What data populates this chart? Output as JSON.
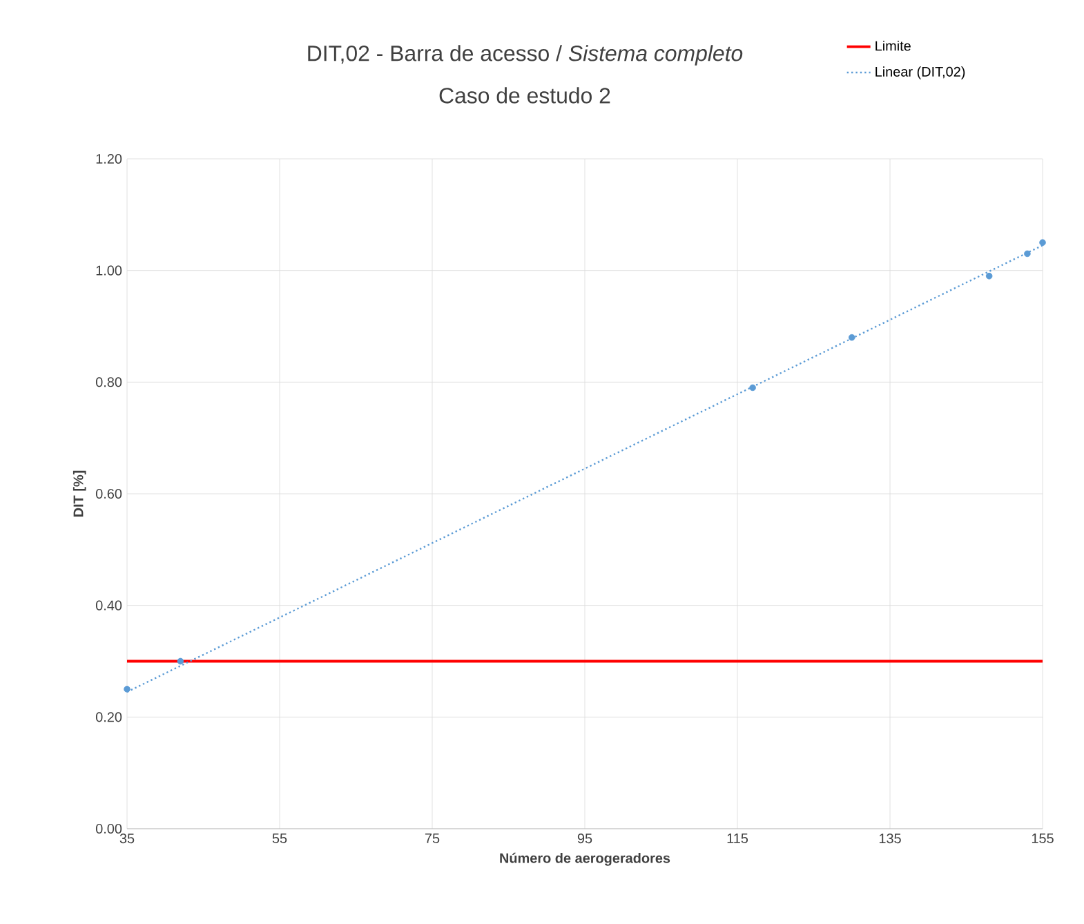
{
  "chart_data": {
    "type": "scatter",
    "title": "DIT,02 - Barra de acesso / *Sistema completo*",
    "subtitle": "Caso de estudo 2",
    "xlabel": "Número de aerogeradores",
    "ylabel": "DIT [%]",
    "x": [
      35,
      42,
      117,
      130,
      148,
      153,
      155
    ],
    "series": [
      {
        "color": "#5b9bd5",
        "values": [
          0.25,
          0.3,
          0.79,
          0.88,
          0.99,
          1.03,
          1.05
        ],
        "marker": "circle"
      },
      {
        "name": "Linear  (DIT,02)",
        "type": "line",
        "color": "#5b9bd5",
        "x": [
          35,
          155
        ],
        "values": [
          0.245,
          1.045
        ],
        "line_style": "dotted",
        "marker": "none"
      }
    ],
    "ref_lines": [
      {
        "axis": "y",
        "value": 0.3,
        "label": "Limite",
        "color": "#ff0000",
        "line_style": "solid"
      }
    ],
    "xlim": [
      35,
      155
    ],
    "xticks": [
      35,
      55,
      75,
      95,
      115,
      135,
      155
    ],
    "ylim": [
      0,
      1.2
    ],
    "yticks": [
      {
        "value": 0,
        "label": "0.00"
      },
      {
        "value": 0.2,
        "label": "0.20"
      },
      {
        "value": 0.4,
        "label": "0.40"
      },
      {
        "value": 0.6,
        "label": "0.60"
      },
      {
        "value": 0.8,
        "label": "0.80"
      },
      {
        "value": 1.0,
        "label": "1.00"
      },
      {
        "value": 1.2,
        "label": "1.20"
      }
    ],
    "grid": true,
    "legend": "top right"
  }
}
